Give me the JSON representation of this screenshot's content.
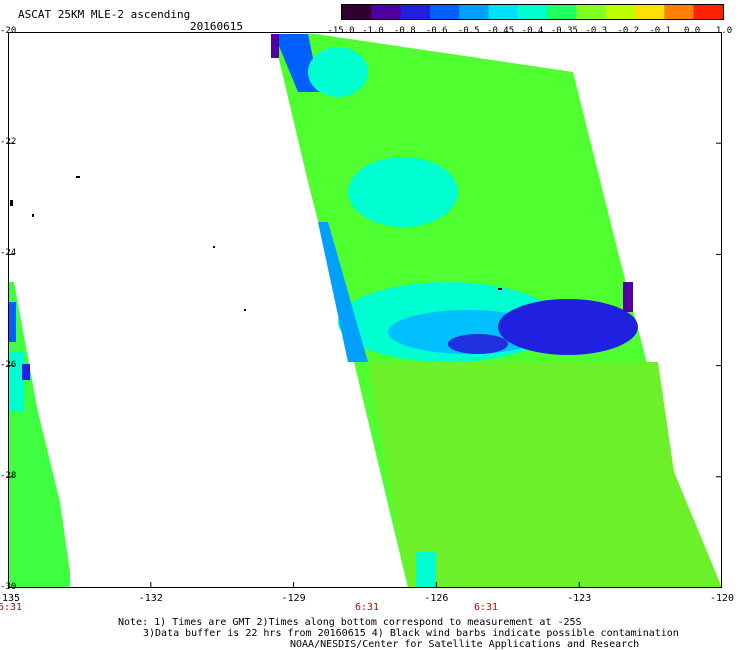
{
  "header": {
    "title": "ASCAT 25KM MLE-2 ascending",
    "date": "20160615"
  },
  "colorbar": {
    "labels": [
      "-15.0",
      "-1.0",
      "-0.8",
      "-0.6",
      "-0.5",
      "-0.45",
      "-0.4",
      "-0.35",
      "-0.3",
      "-0.2",
      "-0.1",
      "0.0",
      "1.0"
    ],
    "colors": [
      "#300030",
      "#5000a0",
      "#2020e0",
      "#0060ff",
      "#00a0ff",
      "#00e0ff",
      "#00ffd0",
      "#20ff60",
      "#80ff20",
      "#c0ff00",
      "#ffe000",
      "#ff8000",
      "#ff2000"
    ]
  },
  "axes": {
    "y_labels": [
      "-20",
      "-22",
      "-24",
      "-26",
      "-28",
      "-30"
    ],
    "x_labels": [
      "-135",
      "-132",
      "-129",
      "-126",
      "-123",
      "-120"
    ],
    "time_labels": [
      {
        "text": "6:31",
        "lon": -135
      },
      {
        "text": "6:31",
        "lon": -127.5
      },
      {
        "text": "6:31",
        "lon": -125
      }
    ]
  },
  "notes": [
    "Note: 1) Times are GMT 2)Times along bottom correspond to measurement at -25S",
    "3)Data buffer is 22 hrs from 20160615 4) Black wind barbs indicate possible contamination",
    "NOAA/NESDIS/Center for Satellite Applications and Research"
  ]
}
